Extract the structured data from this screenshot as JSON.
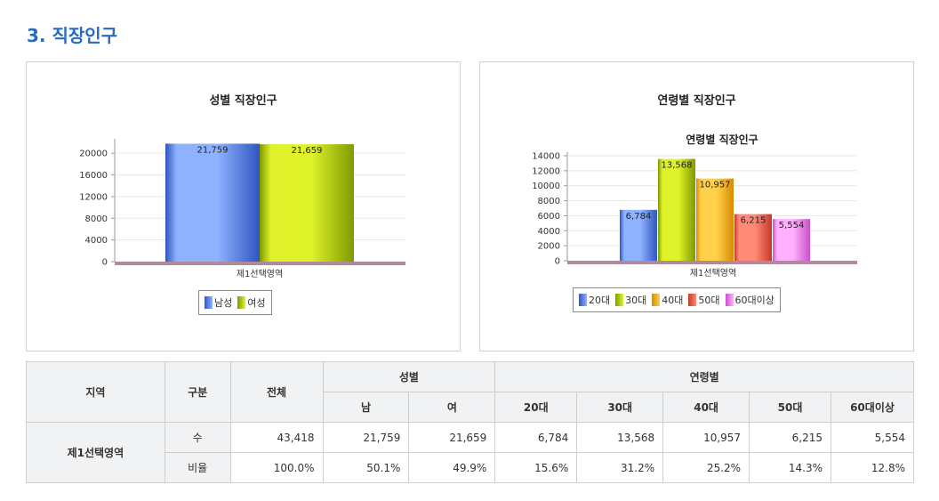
{
  "section_title": "3. 직장인구",
  "colors": {
    "male": "#3f6fe0",
    "female": "#a6c400",
    "age_20": "#3f6fe0",
    "age_30": "#a6c400",
    "age_40": "#f0a000",
    "age_50": "#e25040",
    "age_60": "#e070e0",
    "baseline": "#b08a98"
  },
  "chart_data": [
    {
      "type": "bar",
      "title": "성별 직장인구",
      "categories": [
        "제1선택영역"
      ],
      "series": [
        {
          "name": "남성",
          "values": [
            21759
          ]
        },
        {
          "name": "여성",
          "values": [
            21659
          ]
        }
      ],
      "data_labels": [
        "21,759",
        "21,659"
      ],
      "y_ticks": [
        0,
        4000,
        8000,
        12000,
        16000,
        20000
      ],
      "ylim": [
        0,
        22000
      ],
      "legend": "bottom-center",
      "grid": true
    },
    {
      "type": "bar",
      "title": "연령별 직장인구",
      "subtitle": "연령별 직장인구",
      "categories": [
        "제1선택영역"
      ],
      "series": [
        {
          "name": "20대",
          "values": [
            6784
          ]
        },
        {
          "name": "30대",
          "values": [
            13568
          ]
        },
        {
          "name": "40대",
          "values": [
            10957
          ]
        },
        {
          "name": "50대",
          "values": [
            6215
          ]
        },
        {
          "name": "60대이상",
          "values": [
            5554
          ]
        }
      ],
      "data_labels": [
        "6,784",
        "13,568",
        "10,957",
        "6,215",
        "5,554"
      ],
      "y_ticks": [
        0,
        2000,
        4000,
        6000,
        8000,
        10000,
        12000,
        14000
      ],
      "ylim": [
        0,
        14000
      ],
      "legend": "bottom-center",
      "grid": true
    }
  ],
  "table": {
    "headers": {
      "region": "지역",
      "type": "구분",
      "total": "전체",
      "gender": "성별",
      "age": "연령별",
      "male": "남",
      "female": "여",
      "age_groups": [
        "20대",
        "30대",
        "40대",
        "50대",
        "60대이상"
      ]
    },
    "region_name": "제1선택영역",
    "rows": [
      {
        "label": "수",
        "values": [
          "43,418",
          "21,759",
          "21,659",
          "6,784",
          "13,568",
          "10,957",
          "6,215",
          "5,554"
        ]
      },
      {
        "label": "비율",
        "values": [
          "100.0%",
          "50.1%",
          "49.9%",
          "15.6%",
          "31.2%",
          "25.2%",
          "14.3%",
          "12.8%"
        ]
      }
    ]
  }
}
